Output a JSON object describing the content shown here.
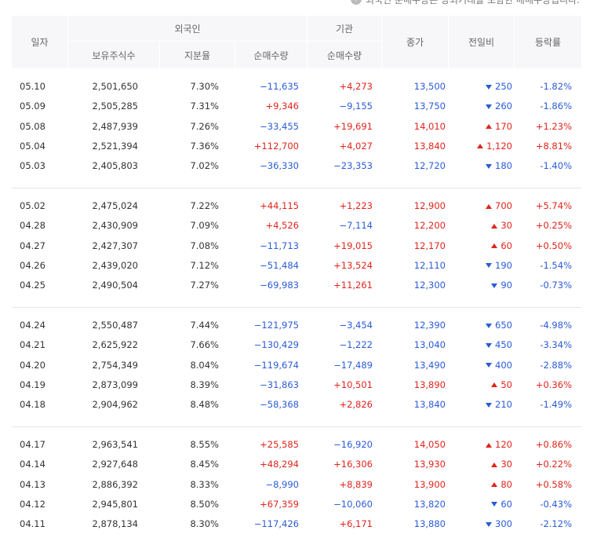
{
  "note": "외국인 순매수량은 장외거래를 포함한 매매수량입니다.",
  "header": {
    "date": "일자",
    "foreign": "외국인",
    "holdings": "보유주식수",
    "ratio": "지분율",
    "foreign_net": "순매수량",
    "institution": "기관",
    "inst_net": "순매수량",
    "close": "종가",
    "change": "전일비",
    "rate": "등락률"
  },
  "table": {
    "groups": [
      {
        "rows": [
          {
            "cells": [
              "05.10",
              "2,501,650",
              "7.30%",
              "−11,635",
              "+4,273",
              "13,500",
              "250",
              "-1.82%"
            ],
            "dir": "down"
          },
          {
            "cells": [
              "05.09",
              "2,505,285",
              "7.31%",
              "+9,346",
              "−9,155",
              "13,750",
              "260",
              "-1.86%"
            ],
            "dir": "down"
          },
          {
            "cells": [
              "05.08",
              "2,487,939",
              "7.26%",
              "−33,455",
              "+19,691",
              "14,010",
              "170",
              "+1.23%"
            ],
            "dir": "up"
          },
          {
            "cells": [
              "05.04",
              "2,521,394",
              "7.36%",
              "+112,700",
              "+4,027",
              "13,840",
              "1,120",
              "+8.81%"
            ],
            "dir": "up"
          },
          {
            "cells": [
              "05.03",
              "2,405,803",
              "7.02%",
              "−36,330",
              "−23,353",
              "12,720",
              "180",
              "-1.40%"
            ],
            "dir": "down"
          }
        ]
      },
      {
        "rows": [
          {
            "cells": [
              "05.02",
              "2,475,024",
              "7.22%",
              "+44,115",
              "+1,223",
              "12,900",
              "700",
              "+5.74%"
            ],
            "dir": "up"
          },
          {
            "cells": [
              "04.28",
              "2,430,909",
              "7.09%",
              "+4,526",
              "−7,114",
              "12,200",
              "30",
              "+0.25%"
            ],
            "dir": "up"
          },
          {
            "cells": [
              "04.27",
              "2,427,307",
              "7.08%",
              "−11,713",
              "+19,015",
              "12,170",
              "60",
              "+0.50%"
            ],
            "dir": "up"
          },
          {
            "cells": [
              "04.26",
              "2,439,020",
              "7.12%",
              "−51,484",
              "+13,524",
              "12,110",
              "190",
              "-1.54%"
            ],
            "dir": "down"
          },
          {
            "cells": [
              "04.25",
              "2,490,504",
              "7.27%",
              "−69,983",
              "+11,261",
              "12,300",
              "90",
              "-0.73%"
            ],
            "dir": "down"
          }
        ]
      },
      {
        "rows": [
          {
            "cells": [
              "04.24",
              "2,550,487",
              "7.44%",
              "−121,975",
              "−3,454",
              "12,390",
              "650",
              "-4.98%"
            ],
            "dir": "down"
          },
          {
            "cells": [
              "04.21",
              "2,625,922",
              "7.66%",
              "−130,429",
              "−1,222",
              "13,040",
              "450",
              "-3.34%"
            ],
            "dir": "down"
          },
          {
            "cells": [
              "04.20",
              "2,754,349",
              "8.04%",
              "−119,674",
              "−17,489",
              "13,490",
              "400",
              "-2.88%"
            ],
            "dir": "down"
          },
          {
            "cells": [
              "04.19",
              "2,873,099",
              "8.39%",
              "−31,863",
              "+10,501",
              "13,890",
              "50",
              "+0.36%"
            ],
            "dir": "up"
          },
          {
            "cells": [
              "04.18",
              "2,904,962",
              "8.48%",
              "−58,368",
              "+2,826",
              "13,840",
              "210",
              "-1.49%"
            ],
            "dir": "down"
          }
        ]
      },
      {
        "rows": [
          {
            "cells": [
              "04.17",
              "2,963,541",
              "8.55%",
              "+25,585",
              "−16,920",
              "14,050",
              "120",
              "+0.86%"
            ],
            "dir": "up"
          },
          {
            "cells": [
              "04.14",
              "2,927,648",
              "8.45%",
              "+48,294",
              "+16,306",
              "13,930",
              "30",
              "+0.22%"
            ],
            "dir": "up"
          },
          {
            "cells": [
              "04.13",
              "2,886,392",
              "8.33%",
              "−8,990",
              "+8,839",
              "13,900",
              "80",
              "+0.58%"
            ],
            "dir": "up"
          },
          {
            "cells": [
              "04.12",
              "2,945,801",
              "8.50%",
              "+67,359",
              "−10,060",
              "13,820",
              "60",
              "-0.43%"
            ],
            "dir": "down"
          },
          {
            "cells": [
              "04.11",
              "2,878,134",
              "8.30%",
              "−117,426",
              "+6,171",
              "13,880",
              "300",
              "-2.12%"
            ],
            "dir": "down"
          }
        ]
      }
    ]
  }
}
